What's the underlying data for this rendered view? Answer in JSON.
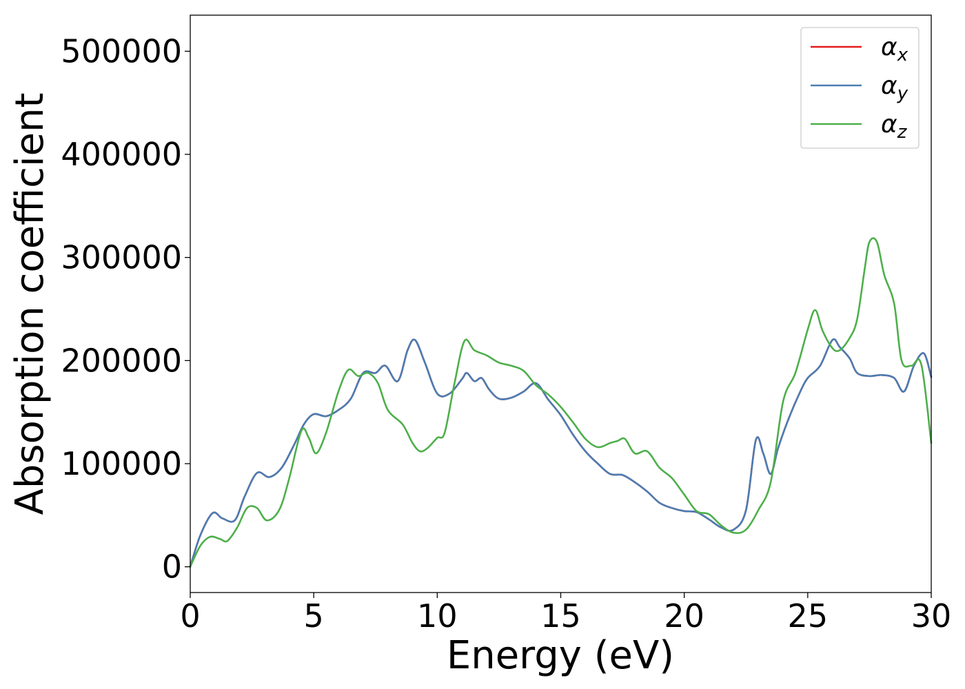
{
  "chart_data": {
    "type": "line",
    "title": "",
    "xlabel": "Energy (eV)",
    "ylabel": "Absorption coefficient",
    "xlim": [
      0,
      30
    ],
    "ylim": [
      -25000,
      535000
    ],
    "grid": false,
    "legend_position": "top-right",
    "x_ticks": [
      0,
      5,
      10,
      15,
      20,
      25,
      30
    ],
    "x_tick_labels": [
      "0",
      "5",
      "10",
      "15",
      "20",
      "25",
      "30"
    ],
    "y_ticks": [
      0,
      100000,
      200000,
      300000,
      400000,
      500000
    ],
    "y_tick_labels": [
      "0",
      "100000",
      "200000",
      "300000",
      "400000",
      "500000"
    ],
    "series": [
      {
        "name": "α_x",
        "legend_base": "α",
        "legend_sub": "x",
        "color": "#e41a1c",
        "x": [
          0,
          0.4,
          0.9,
          1.3,
          1.8,
          2.2,
          2.7,
          3.2,
          3.7,
          4.2,
          4.6,
          5.0,
          5.5,
          6.0,
          6.5,
          7.0,
          7.5,
          7.9,
          8.4,
          8.8,
          9.1,
          9.5,
          10.0,
          10.5,
          11.0,
          11.2,
          11.5,
          11.8,
          12.1,
          12.5,
          13.0,
          13.5,
          14.0,
          14.5,
          15.0,
          15.5,
          16.0,
          16.5,
          17.0,
          17.5,
          18.0,
          18.5,
          19.0,
          19.5,
          20.0,
          20.5,
          21.0,
          21.5,
          22.0,
          22.5,
          22.9,
          23.2,
          23.5,
          23.8,
          24.2,
          24.7,
          25.0,
          25.5,
          26.0,
          26.3,
          26.7,
          27.0,
          27.5,
          28.0,
          28.5,
          28.9,
          29.3,
          29.7,
          30.0
        ],
        "y": [
          0,
          30000,
          52000,
          47000,
          45000,
          68000,
          91000,
          87000,
          96000,
          118000,
          138000,
          148000,
          146000,
          152000,
          163000,
          188000,
          188000,
          195000,
          180000,
          210000,
          220000,
          198000,
          168000,
          168000,
          182000,
          188000,
          180000,
          183000,
          172000,
          163000,
          164000,
          170000,
          178000,
          162000,
          147000,
          128000,
          112000,
          100000,
          90000,
          89000,
          82000,
          73000,
          62000,
          57000,
          54000,
          53000,
          46000,
          38000,
          36000,
          55000,
          123000,
          110000,
          90000,
          115000,
          142000,
          170000,
          183000,
          195000,
          220000,
          213000,
          202000,
          188000,
          185000,
          186000,
          183000,
          170000,
          195000,
          207000,
          184000
        ]
      },
      {
        "name": "α_y",
        "legend_base": "α",
        "legend_sub": "y",
        "color": "#4a7db3",
        "x": [
          0,
          0.4,
          0.9,
          1.3,
          1.8,
          2.2,
          2.7,
          3.2,
          3.7,
          4.2,
          4.6,
          5.0,
          5.5,
          6.0,
          6.5,
          7.0,
          7.5,
          7.9,
          8.4,
          8.8,
          9.1,
          9.5,
          10.0,
          10.5,
          11.0,
          11.2,
          11.5,
          11.8,
          12.1,
          12.5,
          13.0,
          13.5,
          14.0,
          14.5,
          15.0,
          15.5,
          16.0,
          16.5,
          17.0,
          17.5,
          18.0,
          18.5,
          19.0,
          19.5,
          20.0,
          20.5,
          21.0,
          21.5,
          22.0,
          22.5,
          22.9,
          23.2,
          23.5,
          23.8,
          24.2,
          24.7,
          25.0,
          25.5,
          26.0,
          26.3,
          26.7,
          27.0,
          27.5,
          28.0,
          28.5,
          28.9,
          29.3,
          29.7,
          30.0
        ],
        "y": [
          0,
          30000,
          52000,
          47000,
          45000,
          68000,
          91000,
          87000,
          96000,
          118000,
          138000,
          148000,
          146000,
          152000,
          163000,
          188000,
          188000,
          195000,
          180000,
          210000,
          220000,
          198000,
          168000,
          168000,
          182000,
          188000,
          180000,
          183000,
          172000,
          163000,
          164000,
          170000,
          178000,
          162000,
          147000,
          128000,
          112000,
          100000,
          90000,
          89000,
          82000,
          73000,
          62000,
          57000,
          54000,
          53000,
          46000,
          38000,
          36000,
          55000,
          123000,
          110000,
          90000,
          115000,
          142000,
          170000,
          183000,
          195000,
          220000,
          213000,
          202000,
          188000,
          185000,
          186000,
          183000,
          170000,
          195000,
          207000,
          184000
        ]
      },
      {
        "name": "α_z",
        "legend_base": "α",
        "legend_sub": "z",
        "color": "#4daf4a",
        "x": [
          0,
          0.4,
          0.8,
          1.2,
          1.5,
          1.9,
          2.3,
          2.7,
          3.1,
          3.6,
          4.0,
          4.5,
          4.8,
          5.1,
          5.5,
          6.0,
          6.4,
          6.8,
          7.2,
          7.6,
          8.0,
          8.6,
          9.0,
          9.3,
          9.6,
          10.0,
          10.3,
          10.7,
          11.1,
          11.5,
          12.0,
          12.5,
          13.0,
          13.5,
          14.0,
          14.5,
          15.0,
          15.5,
          16.0,
          16.5,
          17.0,
          17.3,
          17.6,
          18.0,
          18.5,
          19.0,
          19.5,
          20.0,
          20.5,
          21.0,
          21.5,
          22.0,
          22.5,
          23.0,
          23.5,
          24.0,
          24.5,
          25.0,
          25.3,
          25.6,
          26.0,
          26.3,
          26.7,
          27.0,
          27.3,
          27.5,
          27.8,
          28.1,
          28.5,
          28.8,
          29.2,
          29.6,
          30.0
        ],
        "y": [
          0,
          20000,
          29000,
          27000,
          25000,
          38000,
          57000,
          57000,
          45000,
          55000,
          85000,
          132000,
          125000,
          110000,
          130000,
          170000,
          191000,
          185000,
          188000,
          178000,
          152000,
          138000,
          120000,
          112000,
          115000,
          125000,
          130000,
          178000,
          219000,
          210000,
          205000,
          198000,
          195000,
          190000,
          176000,
          167000,
          155000,
          140000,
          124000,
          116000,
          120000,
          122000,
          124000,
          110000,
          112000,
          96000,
          86000,
          70000,
          54000,
          51000,
          40000,
          33000,
          36000,
          55000,
          82000,
          160000,
          188000,
          230000,
          249000,
          229000,
          212000,
          210000,
          222000,
          240000,
          288000,
          315000,
          315000,
          283000,
          255000,
          200000,
          195000,
          196000,
          120000
        ]
      }
    ]
  }
}
